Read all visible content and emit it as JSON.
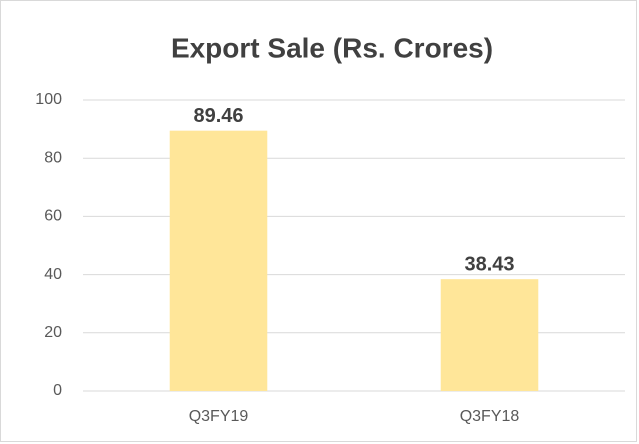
{
  "chart_data": {
    "type": "bar",
    "title": "Export Sale (Rs. Crores)",
    "categories": [
      "Q3FY19",
      "Q3FY18"
    ],
    "values": [
      89.46,
      38.43
    ],
    "color": "#ffe699",
    "ylim": [
      0,
      100
    ],
    "yticks": [
      0,
      20,
      40,
      60,
      80,
      100
    ],
    "grid": true,
    "data_labels": true
  }
}
